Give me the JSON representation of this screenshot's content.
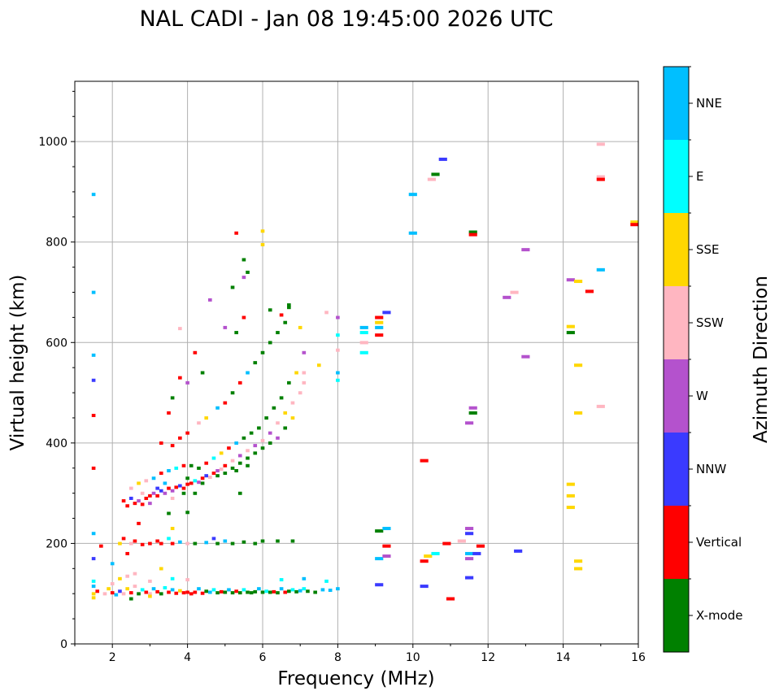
{
  "chart_data": {
    "type": "scatter",
    "title": "NAL CADI - Jan 08 19:45:00 2026 UTC",
    "xlabel": "Frequency (MHz)",
    "ylabel": "Virtual height (km)",
    "xlim": [
      1,
      16
    ],
    "ylim": [
      0,
      1120
    ],
    "xticks": [
      2,
      4,
      6,
      8,
      10,
      12,
      14,
      16
    ],
    "yticks": [
      0,
      200,
      400,
      600,
      800,
      1000
    ],
    "grid": true,
    "colorbar": {
      "label": "Azimuth Direction",
      "placement": "right",
      "categories": [
        {
          "name": "X-mode",
          "color": "#008000"
        },
        {
          "name": "Vertical",
          "color": "#ff0000"
        },
        {
          "name": "NNW",
          "color": "#3a3aff"
        },
        {
          "name": "W",
          "color": "#b452cd"
        },
        {
          "name": "SSW",
          "color": "#ffb6c1"
        },
        {
          "name": "SSE",
          "color": "#ffd700"
        },
        {
          "name": "E",
          "color": "#00ffff"
        },
        {
          "name": "NNE",
          "color": "#00bfff"
        }
      ]
    },
    "point_format": [
      "frequency_mhz",
      "height_km",
      "category_index"
    ],
    "points": [
      [
        1.5,
        100,
        5
      ],
      [
        1.5,
        115,
        7
      ],
      [
        1.5,
        125,
        6
      ],
      [
        1.6,
        105,
        1
      ],
      [
        1.8,
        100,
        4
      ],
      [
        1.9,
        110,
        5
      ],
      [
        2.0,
        102,
        1
      ],
      [
        2.0,
        120,
        4
      ],
      [
        2.1,
        98,
        7
      ],
      [
        2.2,
        105,
        2
      ],
      [
        2.3,
        100,
        4
      ],
      [
        2.4,
        110,
        5
      ],
      [
        2.5,
        102,
        1
      ],
      [
        2.6,
        115,
        4
      ],
      [
        2.7,
        100,
        0
      ],
      [
        2.8,
        108,
        6
      ],
      [
        2.9,
        103,
        1
      ],
      [
        3.0,
        100,
        4
      ],
      [
        3.1,
        110,
        7
      ],
      [
        3.2,
        104,
        1
      ],
      [
        3.3,
        100,
        0
      ],
      [
        3.4,
        112,
        6
      ],
      [
        3.5,
        103,
        1
      ],
      [
        3.6,
        108,
        7
      ],
      [
        3.7,
        101,
        1
      ],
      [
        3.8,
        106,
        5
      ],
      [
        3.9,
        102,
        1
      ],
      [
        4.0,
        103,
        1
      ],
      [
        4.1,
        100,
        1
      ],
      [
        4.2,
        103,
        1
      ],
      [
        4.3,
        110,
        7
      ],
      [
        4.4,
        101,
        1
      ],
      [
        4.5,
        105,
        0
      ],
      [
        4.6,
        103,
        7
      ],
      [
        4.7,
        108,
        6
      ],
      [
        4.8,
        102,
        0
      ],
      [
        4.9,
        104,
        1
      ],
      [
        5.0,
        103,
        0
      ],
      [
        5.1,
        108,
        7
      ],
      [
        5.2,
        102,
        0
      ],
      [
        5.3,
        105,
        1
      ],
      [
        5.4,
        102,
        0
      ],
      [
        5.5,
        108,
        6
      ],
      [
        5.6,
        103,
        0
      ],
      [
        5.7,
        102,
        0
      ],
      [
        5.8,
        104,
        0
      ],
      [
        5.9,
        110,
        7
      ],
      [
        6.0,
        103,
        0
      ],
      [
        6.1,
        105,
        6
      ],
      [
        6.2,
        103,
        0
      ],
      [
        6.3,
        104,
        1
      ],
      [
        6.4,
        102,
        0
      ],
      [
        6.5,
        110,
        7
      ],
      [
        6.6,
        103,
        1
      ],
      [
        6.7,
        105,
        0
      ],
      [
        6.8,
        108,
        6
      ],
      [
        6.9,
        104,
        0
      ],
      [
        7.0,
        106,
        7
      ],
      [
        7.1,
        110,
        6
      ],
      [
        7.2,
        105,
        0
      ],
      [
        7.4,
        103,
        0
      ],
      [
        7.6,
        108,
        7
      ],
      [
        7.8,
        107,
        7
      ],
      [
        8.0,
        110,
        7
      ],
      [
        2.2,
        130,
        5
      ],
      [
        2.6,
        140,
        4
      ],
      [
        3.0,
        125,
        4
      ],
      [
        3.3,
        150,
        5
      ],
      [
        3.6,
        130,
        6
      ],
      [
        4.0,
        128,
        4
      ],
      [
        2.4,
        135,
        4
      ],
      [
        7.1,
        130,
        7
      ],
      [
        7.7,
        125,
        6
      ],
      [
        6.5,
        128,
        6
      ],
      [
        2.5,
        90,
        0
      ],
      [
        3.0,
        95,
        5
      ],
      [
        1.5,
        92,
        5
      ],
      [
        1.5,
        220,
        7
      ],
      [
        1.5,
        170,
        2
      ],
      [
        1.7,
        195,
        1
      ],
      [
        2.2,
        200,
        5
      ],
      [
        2.3,
        210,
        1
      ],
      [
        2.5,
        200,
        4
      ],
      [
        2.6,
        205,
        1
      ],
      [
        2.8,
        198,
        1
      ],
      [
        3.0,
        200,
        1
      ],
      [
        3.2,
        205,
        1
      ],
      [
        3.3,
        200,
        1
      ],
      [
        3.5,
        210,
        6
      ],
      [
        3.6,
        200,
        1
      ],
      [
        3.8,
        203,
        7
      ],
      [
        4.0,
        200,
        4
      ],
      [
        4.2,
        200,
        0
      ],
      [
        4.5,
        202,
        7
      ],
      [
        4.7,
        210,
        2
      ],
      [
        4.8,
        200,
        0
      ],
      [
        5.0,
        205,
        7
      ],
      [
        5.2,
        200,
        0
      ],
      [
        5.5,
        203,
        0
      ],
      [
        5.8,
        200,
        0
      ],
      [
        6.0,
        205,
        0
      ],
      [
        6.4,
        205,
        0
      ],
      [
        6.8,
        205,
        0
      ],
      [
        2.7,
        240,
        1
      ],
      [
        2.4,
        180,
        1
      ],
      [
        3.6,
        230,
        5
      ],
      [
        2.0,
        160,
        7
      ],
      [
        2.3,
        285,
        1
      ],
      [
        2.4,
        275,
        1
      ],
      [
        2.5,
        290,
        2
      ],
      [
        2.6,
        280,
        1
      ],
      [
        2.7,
        285,
        3
      ],
      [
        2.8,
        278,
        1
      ],
      [
        2.9,
        290,
        1
      ],
      [
        3.0,
        295,
        1
      ],
      [
        3.1,
        300,
        3
      ],
      [
        3.2,
        295,
        1
      ],
      [
        3.3,
        305,
        2
      ],
      [
        3.4,
        300,
        3
      ],
      [
        3.5,
        310,
        1
      ],
      [
        3.6,
        305,
        3
      ],
      [
        3.7,
        312,
        1
      ],
      [
        3.8,
        315,
        2
      ],
      [
        3.9,
        310,
        1
      ],
      [
        4.0,
        318,
        1
      ],
      [
        4.1,
        320,
        1
      ],
      [
        4.2,
        325,
        6
      ],
      [
        4.3,
        322,
        3
      ],
      [
        4.4,
        330,
        1
      ],
      [
        4.5,
        335,
        2
      ],
      [
        4.6,
        332,
        4
      ],
      [
        4.7,
        340,
        1
      ],
      [
        4.8,
        345,
        3
      ],
      [
        4.9,
        348,
        4
      ],
      [
        5.0,
        355,
        1
      ],
      [
        5.2,
        365,
        4
      ],
      [
        5.4,
        375,
        3
      ],
      [
        5.6,
        385,
        4
      ],
      [
        5.8,
        395,
        3
      ],
      [
        6.0,
        405,
        4
      ],
      [
        6.2,
        420,
        3
      ],
      [
        6.4,
        440,
        4
      ],
      [
        6.6,
        460,
        5
      ],
      [
        6.8,
        480,
        4
      ],
      [
        7.0,
        500,
        4
      ],
      [
        7.1,
        520,
        4
      ],
      [
        2.5,
        310,
        4
      ],
      [
        2.7,
        320,
        5
      ],
      [
        2.9,
        325,
        4
      ],
      [
        3.1,
        330,
        7
      ],
      [
        3.3,
        340,
        1
      ],
      [
        3.5,
        345,
        7
      ],
      [
        3.7,
        350,
        6
      ],
      [
        3.9,
        355,
        1
      ],
      [
        4.1,
        355,
        0
      ],
      [
        4.3,
        350,
        0
      ],
      [
        4.5,
        360,
        1
      ],
      [
        4.7,
        370,
        6
      ],
      [
        4.9,
        380,
        5
      ],
      [
        5.1,
        390,
        1
      ],
      [
        5.3,
        400,
        7
      ],
      [
        5.5,
        410,
        0
      ],
      [
        5.7,
        420,
        0
      ],
      [
        5.9,
        430,
        0
      ],
      [
        6.1,
        450,
        0
      ],
      [
        6.3,
        470,
        0
      ],
      [
        6.5,
        490,
        0
      ],
      [
        6.7,
        520,
        0
      ],
      [
        6.9,
        540,
        5
      ],
      [
        4.0,
        330,
        0
      ],
      [
        4.4,
        320,
        0
      ],
      [
        4.8,
        335,
        0
      ],
      [
        5.0,
        340,
        0
      ],
      [
        5.2,
        350,
        0
      ],
      [
        5.4,
        360,
        0
      ],
      [
        5.6,
        370,
        0
      ],
      [
        5.8,
        380,
        0
      ],
      [
        6.0,
        390,
        0
      ],
      [
        6.2,
        400,
        0
      ],
      [
        6.4,
        410,
        3
      ],
      [
        6.6,
        430,
        0
      ],
      [
        6.8,
        450,
        5
      ],
      [
        5.3,
        345,
        0
      ],
      [
        5.6,
        355,
        0
      ],
      [
        3.2,
        310,
        2
      ],
      [
        3.4,
        320,
        7
      ],
      [
        3.0,
        280,
        3
      ],
      [
        2.8,
        300,
        4
      ],
      [
        3.6,
        290,
        4
      ],
      [
        3.9,
        300,
        0
      ],
      [
        4.2,
        300,
        0
      ],
      [
        5.4,
        300,
        0
      ],
      [
        3.3,
        400,
        1
      ],
      [
        3.6,
        395,
        1
      ],
      [
        3.8,
        410,
        1
      ],
      [
        4.0,
        420,
        1
      ],
      [
        4.3,
        440,
        4
      ],
      [
        4.5,
        450,
        5
      ],
      [
        4.8,
        470,
        7
      ],
      [
        5.0,
        480,
        1
      ],
      [
        5.2,
        500,
        0
      ],
      [
        5.4,
        520,
        1
      ],
      [
        5.6,
        540,
        7
      ],
      [
        5.8,
        560,
        0
      ],
      [
        6.0,
        580,
        0
      ],
      [
        6.2,
        600,
        0
      ],
      [
        6.4,
        620,
        0
      ],
      [
        6.6,
        640,
        0
      ],
      [
        6.7,
        670,
        0
      ],
      [
        6.2,
        665,
        0
      ],
      [
        5.3,
        620,
        0
      ],
      [
        5.0,
        630,
        3
      ],
      [
        4.0,
        520,
        3
      ],
      [
        3.8,
        530,
        1
      ],
      [
        3.6,
        490,
        0
      ],
      [
        3.5,
        460,
        1
      ],
      [
        4.4,
        540,
        0
      ],
      [
        4.6,
        685,
        3
      ],
      [
        3.8,
        628,
        4
      ],
      [
        4.2,
        580,
        1
      ],
      [
        5.5,
        730,
        3
      ],
      [
        5.6,
        740,
        0
      ],
      [
        5.5,
        765,
        0
      ],
      [
        5.3,
        818,
        1
      ],
      [
        6.0,
        822,
        5
      ],
      [
        6.0,
        795,
        5
      ],
      [
        5.2,
        710,
        0
      ],
      [
        5.5,
        650,
        1
      ],
      [
        6.5,
        655,
        1
      ],
      [
        6.7,
        675,
        0
      ],
      [
        7.0,
        630,
        5
      ],
      [
        7.1,
        580,
        3
      ],
      [
        7.1,
        540,
        4
      ],
      [
        7.5,
        555,
        5
      ],
      [
        7.7,
        660,
        4
      ],
      [
        8.0,
        650,
        3
      ],
      [
        8.0,
        615,
        6
      ],
      [
        8.0,
        540,
        7
      ],
      [
        8.0,
        525,
        6
      ],
      [
        8.0,
        585,
        4
      ],
      [
        3.5,
        260,
        0
      ],
      [
        4.0,
        262,
        0
      ],
      [
        1.5,
        895,
        7
      ],
      [
        1.5,
        700,
        7
      ],
      [
        1.5,
        575,
        7
      ],
      [
        1.5,
        525,
        2
      ],
      [
        1.5,
        455,
        1
      ],
      [
        1.5,
        350,
        1
      ],
      [
        8.7,
        630,
        7
      ],
      [
        8.7,
        620,
        6
      ],
      [
        8.7,
        600,
        4
      ],
      [
        8.7,
        580,
        6
      ],
      [
        9.1,
        650,
        1
      ],
      [
        9.1,
        640,
        5
      ],
      [
        9.1,
        630,
        7
      ],
      [
        9.1,
        615,
        1
      ],
      [
        9.3,
        660,
        2
      ],
      [
        9.1,
        225,
        0
      ],
      [
        9.3,
        230,
        7
      ],
      [
        9.3,
        195,
        1
      ],
      [
        9.1,
        170,
        7
      ],
      [
        9.3,
        175,
        3
      ],
      [
        9.1,
        118,
        2
      ],
      [
        10.0,
        895,
        7
      ],
      [
        10.0,
        818,
        7
      ],
      [
        10.3,
        365,
        1
      ],
      [
        10.3,
        165,
        1
      ],
      [
        10.3,
        115,
        2
      ],
      [
        10.4,
        175,
        5
      ],
      [
        10.6,
        180,
        6
      ],
      [
        10.6,
        935,
        0
      ],
      [
        10.5,
        925,
        4
      ],
      [
        10.8,
        965,
        2
      ],
      [
        10.9,
        200,
        1
      ],
      [
        11.0,
        90,
        1
      ],
      [
        11.3,
        205,
        4
      ],
      [
        11.5,
        230,
        3
      ],
      [
        11.5,
        220,
        2
      ],
      [
        11.5,
        180,
        7
      ],
      [
        11.5,
        170,
        3
      ],
      [
        11.5,
        132,
        2
      ],
      [
        11.5,
        440,
        3
      ],
      [
        11.6,
        470,
        3
      ],
      [
        11.6,
        460,
        0
      ],
      [
        11.6,
        820,
        0
      ],
      [
        11.6,
        815,
        1
      ],
      [
        11.7,
        180,
        2
      ],
      [
        11.8,
        195,
        1
      ],
      [
        12.5,
        690,
        3
      ],
      [
        12.7,
        700,
        4
      ],
      [
        12.8,
        185,
        2
      ],
      [
        13.0,
        785,
        3
      ],
      [
        13.0,
        572,
        3
      ],
      [
        14.2,
        725,
        3
      ],
      [
        14.2,
        632,
        5
      ],
      [
        14.2,
        620,
        0
      ],
      [
        14.2,
        318,
        5
      ],
      [
        14.2,
        295,
        5
      ],
      [
        14.2,
        272,
        5
      ],
      [
        14.4,
        722,
        5
      ],
      [
        14.4,
        555,
        5
      ],
      [
        14.4,
        460,
        5
      ],
      [
        14.4,
        165,
        5
      ],
      [
        14.4,
        150,
        5
      ],
      [
        14.7,
        702,
        1
      ],
      [
        15.0,
        745,
        7
      ],
      [
        15.0,
        930,
        4
      ],
      [
        15.0,
        925,
        1
      ],
      [
        15.0,
        995,
        4
      ],
      [
        15.0,
        473,
        4
      ],
      [
        15.9,
        840,
        5
      ],
      [
        15.9,
        835,
        1
      ]
    ]
  }
}
